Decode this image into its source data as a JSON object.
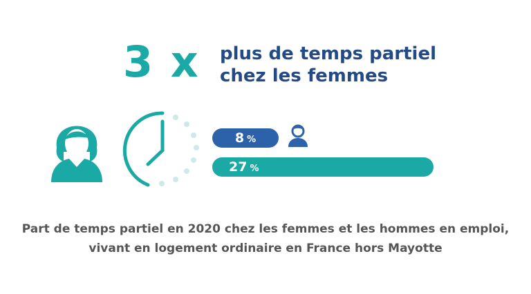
{
  "headline": {
    "multiplier": "3 x",
    "line1": "plus de temps partiel",
    "line2": "chez les femmes"
  },
  "chart_data": {
    "type": "bar",
    "orientation": "horizontal",
    "categories": [
      "Hommes",
      "Femmes"
    ],
    "values": [
      8,
      27
    ],
    "data_labels": [
      "8",
      "27"
    ],
    "unit": "%",
    "xlim": [
      0,
      27
    ]
  },
  "caption": {
    "line1": "Part de temps partiel en 2020 chez les femmes et les hommes en emploi,",
    "line2": "vivant en logement ordinaire en France hors Mayotte"
  },
  "icons": {
    "woman": "woman-icon",
    "clock": "clock-icon",
    "man": "man-icon"
  },
  "colors": {
    "teal": "#1ba9a5",
    "blue": "#2c62a9",
    "navy": "#244a86",
    "caption": "#555555"
  }
}
